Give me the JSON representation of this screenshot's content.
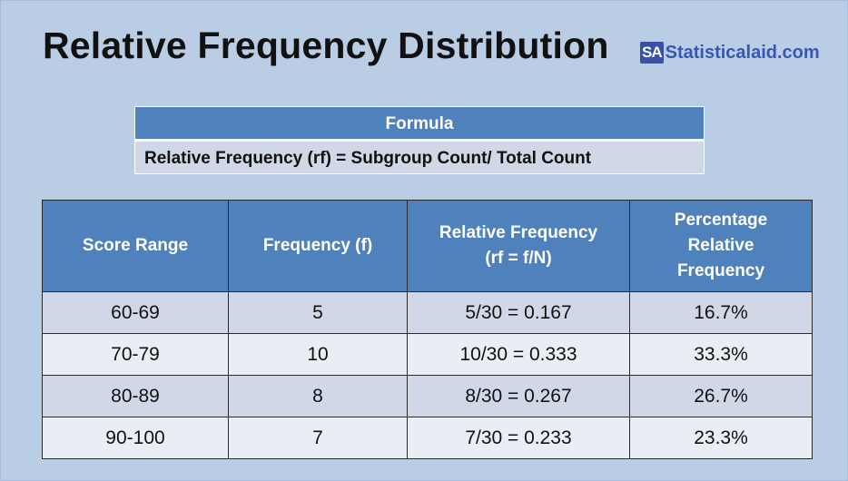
{
  "title": "Relative Frequency Distribution",
  "brand": {
    "badge": "SA",
    "name": "Statisticalaid.com"
  },
  "formula": {
    "header": "Formula",
    "text": "Relative Frequency (rf) = Subgroup Count/ Total Count"
  },
  "table": {
    "headers": [
      "Score Range",
      "Frequency (f)",
      "Relative Frequency (rf = f/N)",
      "Percentage Relative Frequency"
    ],
    "rows": [
      [
        "60-69",
        "5",
        "5/30 = 0.167",
        "16.7%"
      ],
      [
        "70-79",
        "10",
        "10/30 = 0.333",
        "33.3%"
      ],
      [
        "80-89",
        "8",
        "8/30 = 0.267",
        "26.7%"
      ],
      [
        "90-100",
        "7",
        "7/30 = 0.233",
        "23.3%"
      ]
    ]
  },
  "colors": {
    "background": "#b9cde5",
    "header": "#4f81bd",
    "row_light": "#e9edf4",
    "row_dark": "#d0d8e8",
    "brand": "#3a56b0"
  }
}
